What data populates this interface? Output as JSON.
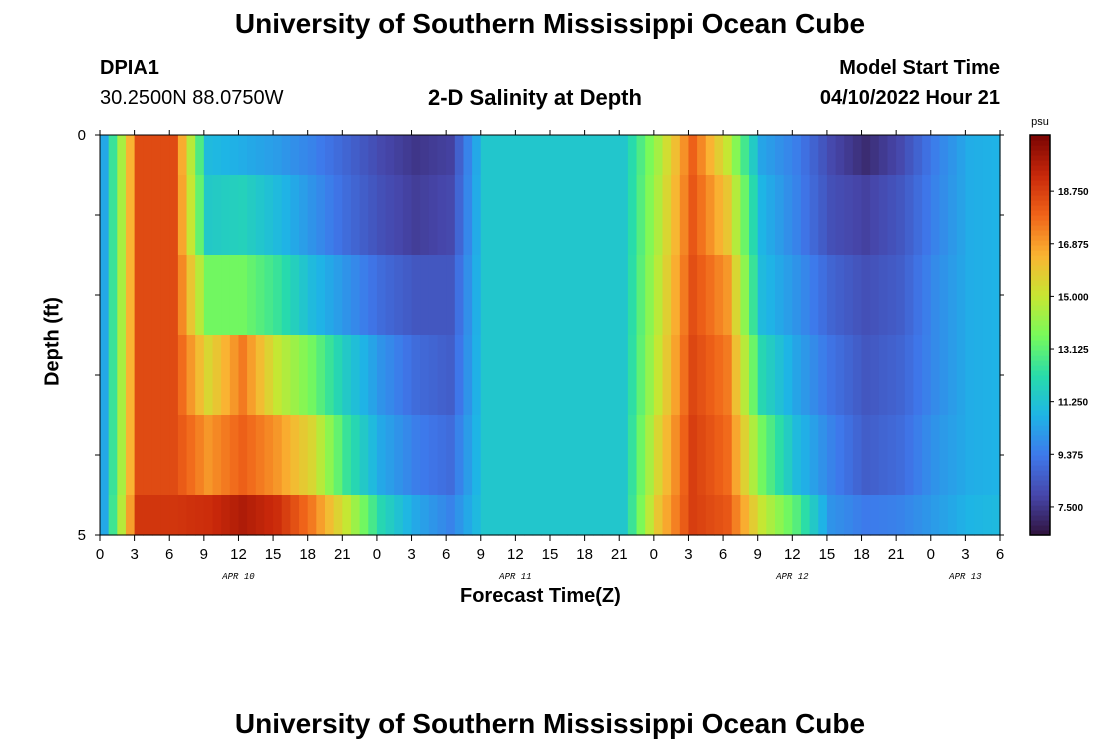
{
  "page": {
    "title": "University of Southern Mississippi Ocean Cube",
    "footer_title": "University of Southern Mississippi Ocean Cube",
    "station_id": "DPIA1",
    "station_coords": "30.2500N  88.0750W",
    "plot_title": "2-D Salinity at Depth",
    "model_start_label": "Model Start Time",
    "model_start_value": "04/10/2022 Hour 21"
  },
  "chart_data": {
    "type": "heatmap",
    "title": "2-D Salinity at Depth",
    "xlabel": "Forecast Time(Z)",
    "ylabel": "Depth (ft)",
    "units": "psu",
    "y_ticks": [
      "0",
      "5"
    ],
    "ylim": [
      0,
      5
    ],
    "x_tick_labels": [
      "0",
      "3",
      "6",
      "9",
      "12",
      "15",
      "18",
      "21",
      "0",
      "3",
      "6",
      "9",
      "12",
      "15",
      "18",
      "21",
      "0",
      "3",
      "6",
      "9",
      "12",
      "15",
      "18",
      "21",
      "0",
      "3",
      "6"
    ],
    "date_labels": [
      {
        "label": "APR 10",
        "hour_index": 4
      },
      {
        "label": "APR 11",
        "hour_index": 12
      },
      {
        "label": "APR 12",
        "hour_index": 20
      },
      {
        "label": "APR 13",
        "hour_index": 25
      }
    ],
    "time_hours": [
      0,
      3,
      6,
      9,
      12,
      15,
      18,
      21,
      24,
      27,
      30,
      33,
      36,
      39,
      42,
      45,
      48,
      51,
      54,
      57,
      60,
      63,
      66,
      69,
      72,
      75,
      78
    ],
    "depth_levels_ft": [
      0,
      0.5,
      1.5,
      2.5,
      3.5,
      4.5,
      5
    ],
    "salinity": [
      [
        10.5,
        18.5,
        18.5,
        11.0,
        10.6,
        10.2,
        9.6,
        8.8,
        8.0,
        7.5,
        7.8,
        11.4,
        11.4,
        11.4,
        11.4,
        11.4,
        14.4,
        18.0,
        15.0,
        10.4,
        9.5,
        8.0,
        7.2,
        8.0,
        9.5,
        10.6,
        10.8
      ],
      [
        10.5,
        18.5,
        18.5,
        11.5,
        11.8,
        11.0,
        10.0,
        9.0,
        8.2,
        7.7,
        8.0,
        11.4,
        11.4,
        11.4,
        11.4,
        11.4,
        14.6,
        18.2,
        16.0,
        10.8,
        9.6,
        8.2,
        7.8,
        8.4,
        9.6,
        10.6,
        10.8
      ],
      [
        10.5,
        18.5,
        18.5,
        13.5,
        13.5,
        12.5,
        11.0,
        10.0,
        9.0,
        8.4,
        8.4,
        11.4,
        11.4,
        11.4,
        11.4,
        11.4,
        14.8,
        18.4,
        17.0,
        11.0,
        10.0,
        8.8,
        8.2,
        8.6,
        9.8,
        10.6,
        10.8
      ],
      [
        10.5,
        18.5,
        18.5,
        15.5,
        17.5,
        15.0,
        13.5,
        11.5,
        10.0,
        9.0,
        8.6,
        11.4,
        11.4,
        11.4,
        11.4,
        11.4,
        15.0,
        18.6,
        17.5,
        12.0,
        10.4,
        9.2,
        8.4,
        8.8,
        9.8,
        10.6,
        10.8
      ],
      [
        10.5,
        18.5,
        18.5,
        17.0,
        18.0,
        17.0,
        15.5,
        12.5,
        10.5,
        9.5,
        9.0,
        11.4,
        11.4,
        11.4,
        11.4,
        11.4,
        15.5,
        18.8,
        17.8,
        13.5,
        11.0,
        9.6,
        8.6,
        9.0,
        10.0,
        10.6,
        10.8
      ],
      [
        10.5,
        19.0,
        19.0,
        19.2,
        19.8,
        19.2,
        17.5,
        15.0,
        12.0,
        10.5,
        9.6,
        11.4,
        11.4,
        11.4,
        11.4,
        11.4,
        16.0,
        18.8,
        18.2,
        15.0,
        13.0,
        10.0,
        9.4,
        9.6,
        10.2,
        10.8,
        11.0
      ],
      [
        10.5,
        19.0,
        19.2,
        19.8,
        20.3,
        19.6,
        18.0,
        16.0,
        12.5,
        10.8,
        10.0,
        11.4,
        11.4,
        11.4,
        11.4,
        11.4,
        16.2,
        18.9,
        18.5,
        16.5,
        13.5,
        10.5,
        10.2,
        10.4,
        11.0,
        11.2,
        11.2
      ]
    ],
    "colorbar": {
      "unit": "psu",
      "ticks": [
        "18.750",
        "16.875",
        "15.000",
        "13.125",
        "11.250",
        "9.375",
        "7.500"
      ],
      "tick_values": [
        18.75,
        16.875,
        15.0,
        13.125,
        11.25,
        9.375,
        7.5
      ],
      "vmin": 6.5,
      "vmax": 20.75
    },
    "grid": false,
    "legend": "right (colorbar)"
  }
}
